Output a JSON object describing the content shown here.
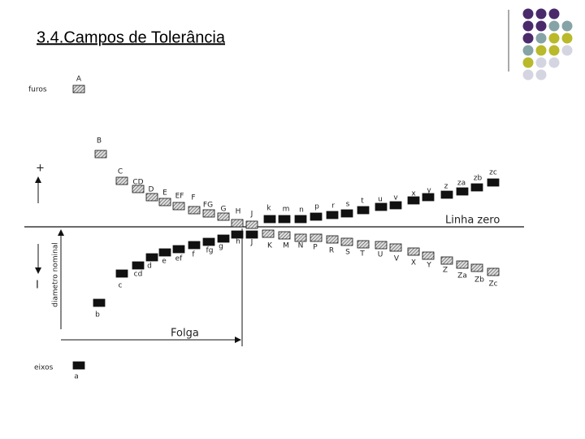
{
  "title": "3.4.Campos de Tolerância",
  "furos_label": "furos",
  "eixos_label": "eixos",
  "plus": "+",
  "minus": "I",
  "zero_line": "Linha zero",
  "axis_label": "diametro nominal",
  "clearance": "Folga",
  "upper_holes": [
    "A",
    "B",
    "C",
    "CD",
    "D",
    "E",
    "EF",
    "F",
    "FG",
    "G",
    "H",
    "J"
  ],
  "upper_shafts": [
    "k",
    "m",
    "n",
    "p",
    "r",
    "s",
    "t",
    "u",
    "v",
    "x",
    "y",
    "z",
    "za",
    "zb",
    "zc"
  ],
  "lower_shafts": [
    "a",
    "b",
    "c",
    "cd",
    "d",
    "e",
    "ef",
    "f",
    "fg",
    "g",
    "h",
    "J"
  ],
  "lower_holes": [
    "K",
    "M",
    "N",
    "P",
    "R",
    "S",
    "T",
    "U",
    "V",
    "X",
    "Y",
    "Z",
    "Za",
    "Zb",
    "Zc"
  ]
}
